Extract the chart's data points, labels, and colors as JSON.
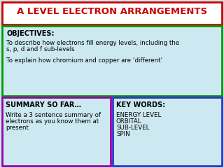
{
  "title": "A LEVEL ELECTRON ARRANGEMENTS",
  "title_color": "#cc0000",
  "title_bg": "#ffffff",
  "title_border_color": "#cc0000",
  "background_color": "#cce8f0",
  "objectives_header": "OBJECTIVES:",
  "objectives_line1": "To describe how electrons fill energy levels, including the",
  "objectives_line2": "s, p, d and f sub-levels",
  "objectives_line3": "To explain how chromium and copper are ‘different’",
  "objectives_border": "#009900",
  "summary_header": "SUMMARY SO FAR…",
  "summary_line1": "Write a 3 sentence summary of",
  "summary_line2": "electrons as you know them at",
  "summary_line3": "present",
  "summary_border": "#9900aa",
  "keywords_header": "KEY WORDS:",
  "keywords_items": [
    "ENERGY LEVEL",
    "ORBITAL",
    "SUB-LEVEL",
    "SPIN"
  ],
  "keywords_border": "#3333cc",
  "text_color": "#000000",
  "bold_color": "#000000",
  "font_family": "Comic Sans MS",
  "title_fontsize": 9.5,
  "header_fontsize": 7.0,
  "body_fontsize": 6.2
}
